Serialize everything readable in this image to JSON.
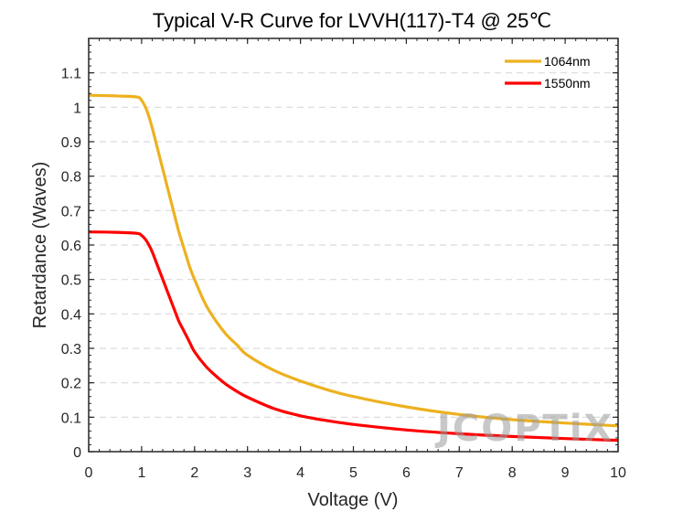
{
  "chart_data": {
    "type": "line",
    "title": "Typical V-R Curve for LVVH(117)-T4 @ 25℃",
    "xlabel": "Voltage (V)",
    "ylabel": "Retardance (Waves)",
    "xlim": [
      0,
      10
    ],
    "ylim": [
      0,
      1.2
    ],
    "xticks": [
      "0",
      "1",
      "2",
      "3",
      "4",
      "5",
      "6",
      "7",
      "8",
      "9",
      "10"
    ],
    "yticks": [
      "0",
      "0.1",
      "0.2",
      "0.3",
      "0.4",
      "0.5",
      "0.6",
      "0.7",
      "0.8",
      "0.9",
      "1",
      "1.1"
    ],
    "grid": "horizontal dashed",
    "legend_position": "top-right",
    "series": [
      {
        "name": "1064nm",
        "color": "#EDB120",
        "x": [
          0,
          0.5,
          0.9,
          1.0,
          1.1,
          1.2,
          1.3,
          1.4,
          1.5,
          1.6,
          1.7,
          1.8,
          1.9,
          2.0,
          2.2,
          2.4,
          2.6,
          2.8,
          3.0,
          3.5,
          4.0,
          4.5,
          5.0,
          6.0,
          7.0,
          8.0,
          9.0,
          10.0
        ],
        "y": [
          1.035,
          1.033,
          1.03,
          1.02,
          0.99,
          0.94,
          0.88,
          0.82,
          0.76,
          0.7,
          0.64,
          0.59,
          0.54,
          0.5,
          0.43,
          0.38,
          0.34,
          0.31,
          0.28,
          0.236,
          0.205,
          0.18,
          0.16,
          0.13,
          0.108,
          0.093,
          0.083,
          0.075
        ]
      },
      {
        "name": "1550nm",
        "color": "#FF0000",
        "x": [
          0,
          0.5,
          0.9,
          1.0,
          1.1,
          1.2,
          1.3,
          1.4,
          1.5,
          1.6,
          1.7,
          1.8,
          1.9,
          2.0,
          2.2,
          2.4,
          2.6,
          2.8,
          3.0,
          3.5,
          4.0,
          4.5,
          5.0,
          6.0,
          7.0,
          8.0,
          9.0,
          10.0
        ],
        "y": [
          0.638,
          0.637,
          0.634,
          0.628,
          0.61,
          0.58,
          0.54,
          0.5,
          0.46,
          0.42,
          0.38,
          0.35,
          0.32,
          0.29,
          0.25,
          0.22,
          0.195,
          0.175,
          0.158,
          0.125,
          0.104,
          0.09,
          0.079,
          0.063,
          0.052,
          0.044,
          0.038,
          0.033
        ]
      }
    ]
  },
  "watermark": {
    "text": "JCOPTiX",
    "color": "#9a9a9a"
  }
}
